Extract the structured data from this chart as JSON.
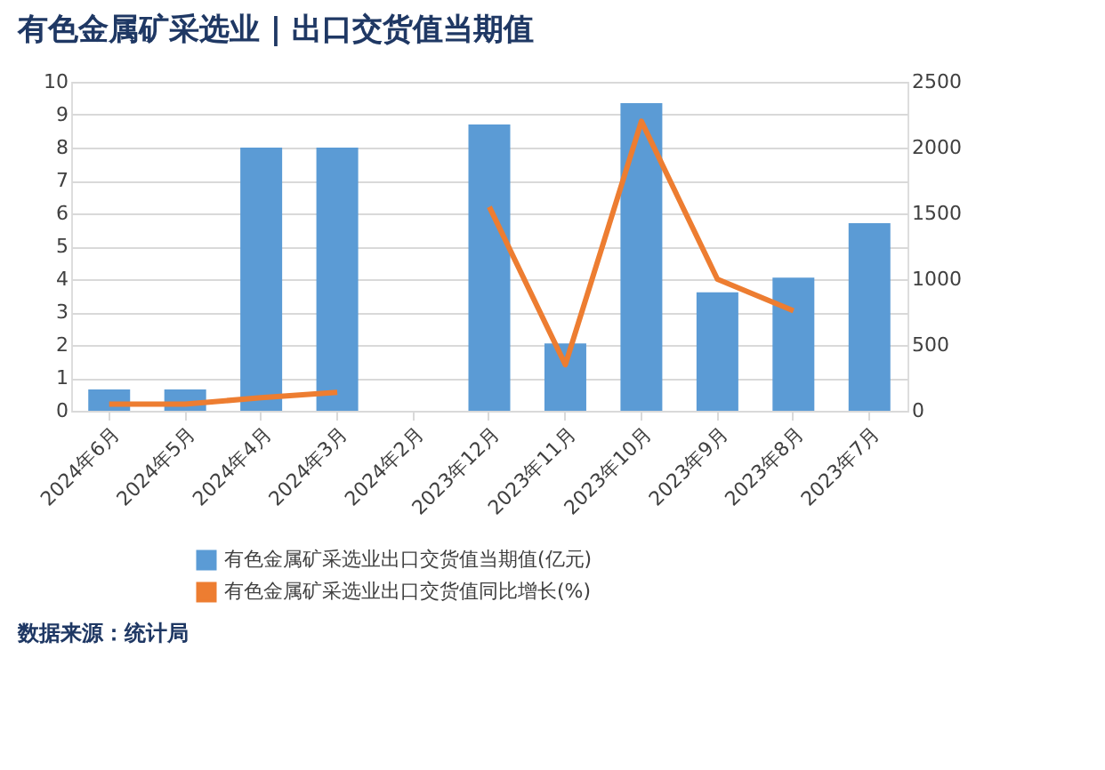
{
  "chart_data": {
    "type": "bar",
    "title": "有色金属矿采选业 | 出口交货值当期值",
    "categories": [
      "2024年6月",
      "2024年5月",
      "2024年4月",
      "2024年3月",
      "2024年2月",
      "2023年12月",
      "2023年11月",
      "2023年10月",
      "2023年9月",
      "2023年8月",
      "2023年7月"
    ],
    "series": [
      {
        "name": "有色金属矿采选业出口交货值当期值(亿元)",
        "color": "#5b9bd5",
        "values": [
          0.65,
          0.65,
          8.0,
          8.0,
          null,
          8.7,
          2.05,
          9.35,
          3.6,
          4.05,
          5.7
        ]
      },
      {
        "name": "有色金属矿采选业出口交货值同比增长(%)",
        "color": "#ed7d31",
        "type": "line",
        "axis": "y2",
        "values": [
          50,
          50,
          100,
          140,
          null,
          1550,
          350,
          2200,
          1000,
          760,
          null
        ]
      }
    ],
    "ylim": [
      0,
      10
    ],
    "yticks": [
      0,
      1,
      2,
      3,
      4,
      5,
      6,
      7,
      8,
      9,
      10
    ],
    "y2lim": [
      0,
      2500
    ],
    "y2ticks": [
      0,
      500,
      1000,
      1500,
      2000,
      2500
    ],
    "grid": "y",
    "legend": "bottom",
    "annotations": [
      "数据来源：统计局"
    ]
  }
}
